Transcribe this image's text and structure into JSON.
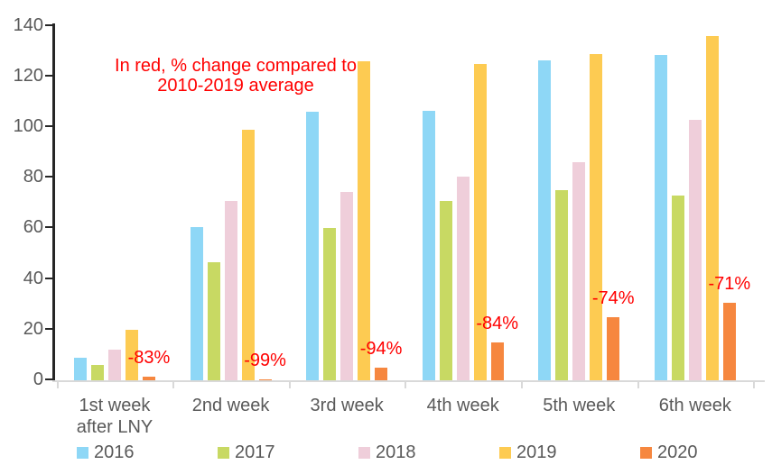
{
  "chart_data": {
    "type": "bar",
    "title": "",
    "xlabel": "",
    "ylabel": "",
    "categories": [
      "1st week\nafter LNY",
      "2nd week",
      "3rd week",
      "4th week",
      "5th week",
      "6th week"
    ],
    "series": [
      {
        "name": "2016",
        "color": "#8ED7F6",
        "values": [
          9,
          60.5,
          106,
          106.5,
          126.5,
          128.5
        ]
      },
      {
        "name": "2017",
        "color": "#C8D963",
        "values": [
          6,
          46.5,
          60,
          71,
          75,
          73
        ]
      },
      {
        "name": "2018",
        "color": "#EFCEDA",
        "values": [
          12,
          71,
          74.5,
          80.5,
          86,
          103
        ]
      },
      {
        "name": "2019",
        "color": "#FDCB52",
        "values": [
          20,
          99,
          126,
          125,
          129,
          136
        ]
      },
      {
        "name": "2020",
        "color": "#F6873F",
        "values": [
          1.3,
          0.5,
          5,
          15,
          25,
          30.5
        ]
      }
    ],
    "pct_change_labels": [
      "-83%",
      "-99%",
      "-94%",
      "-84%",
      "-74%",
      "-71%"
    ],
    "annotation": {
      "line1": "In red, % change compared to",
      "line2": "2010-2019 average",
      "color": "#FF0000"
    },
    "ylim": [
      0,
      140
    ],
    "yticks": [
      0,
      20,
      40,
      60,
      80,
      100,
      120,
      140
    ],
    "grid": false,
    "legend_position": "bottom"
  },
  "colors": {
    "axis_text": "#595959",
    "y_axis_line": "#262626",
    "x_axis_line": "#D9D9D9",
    "annotation_red": "#FF0000",
    "background": "#FFFFFF"
  }
}
